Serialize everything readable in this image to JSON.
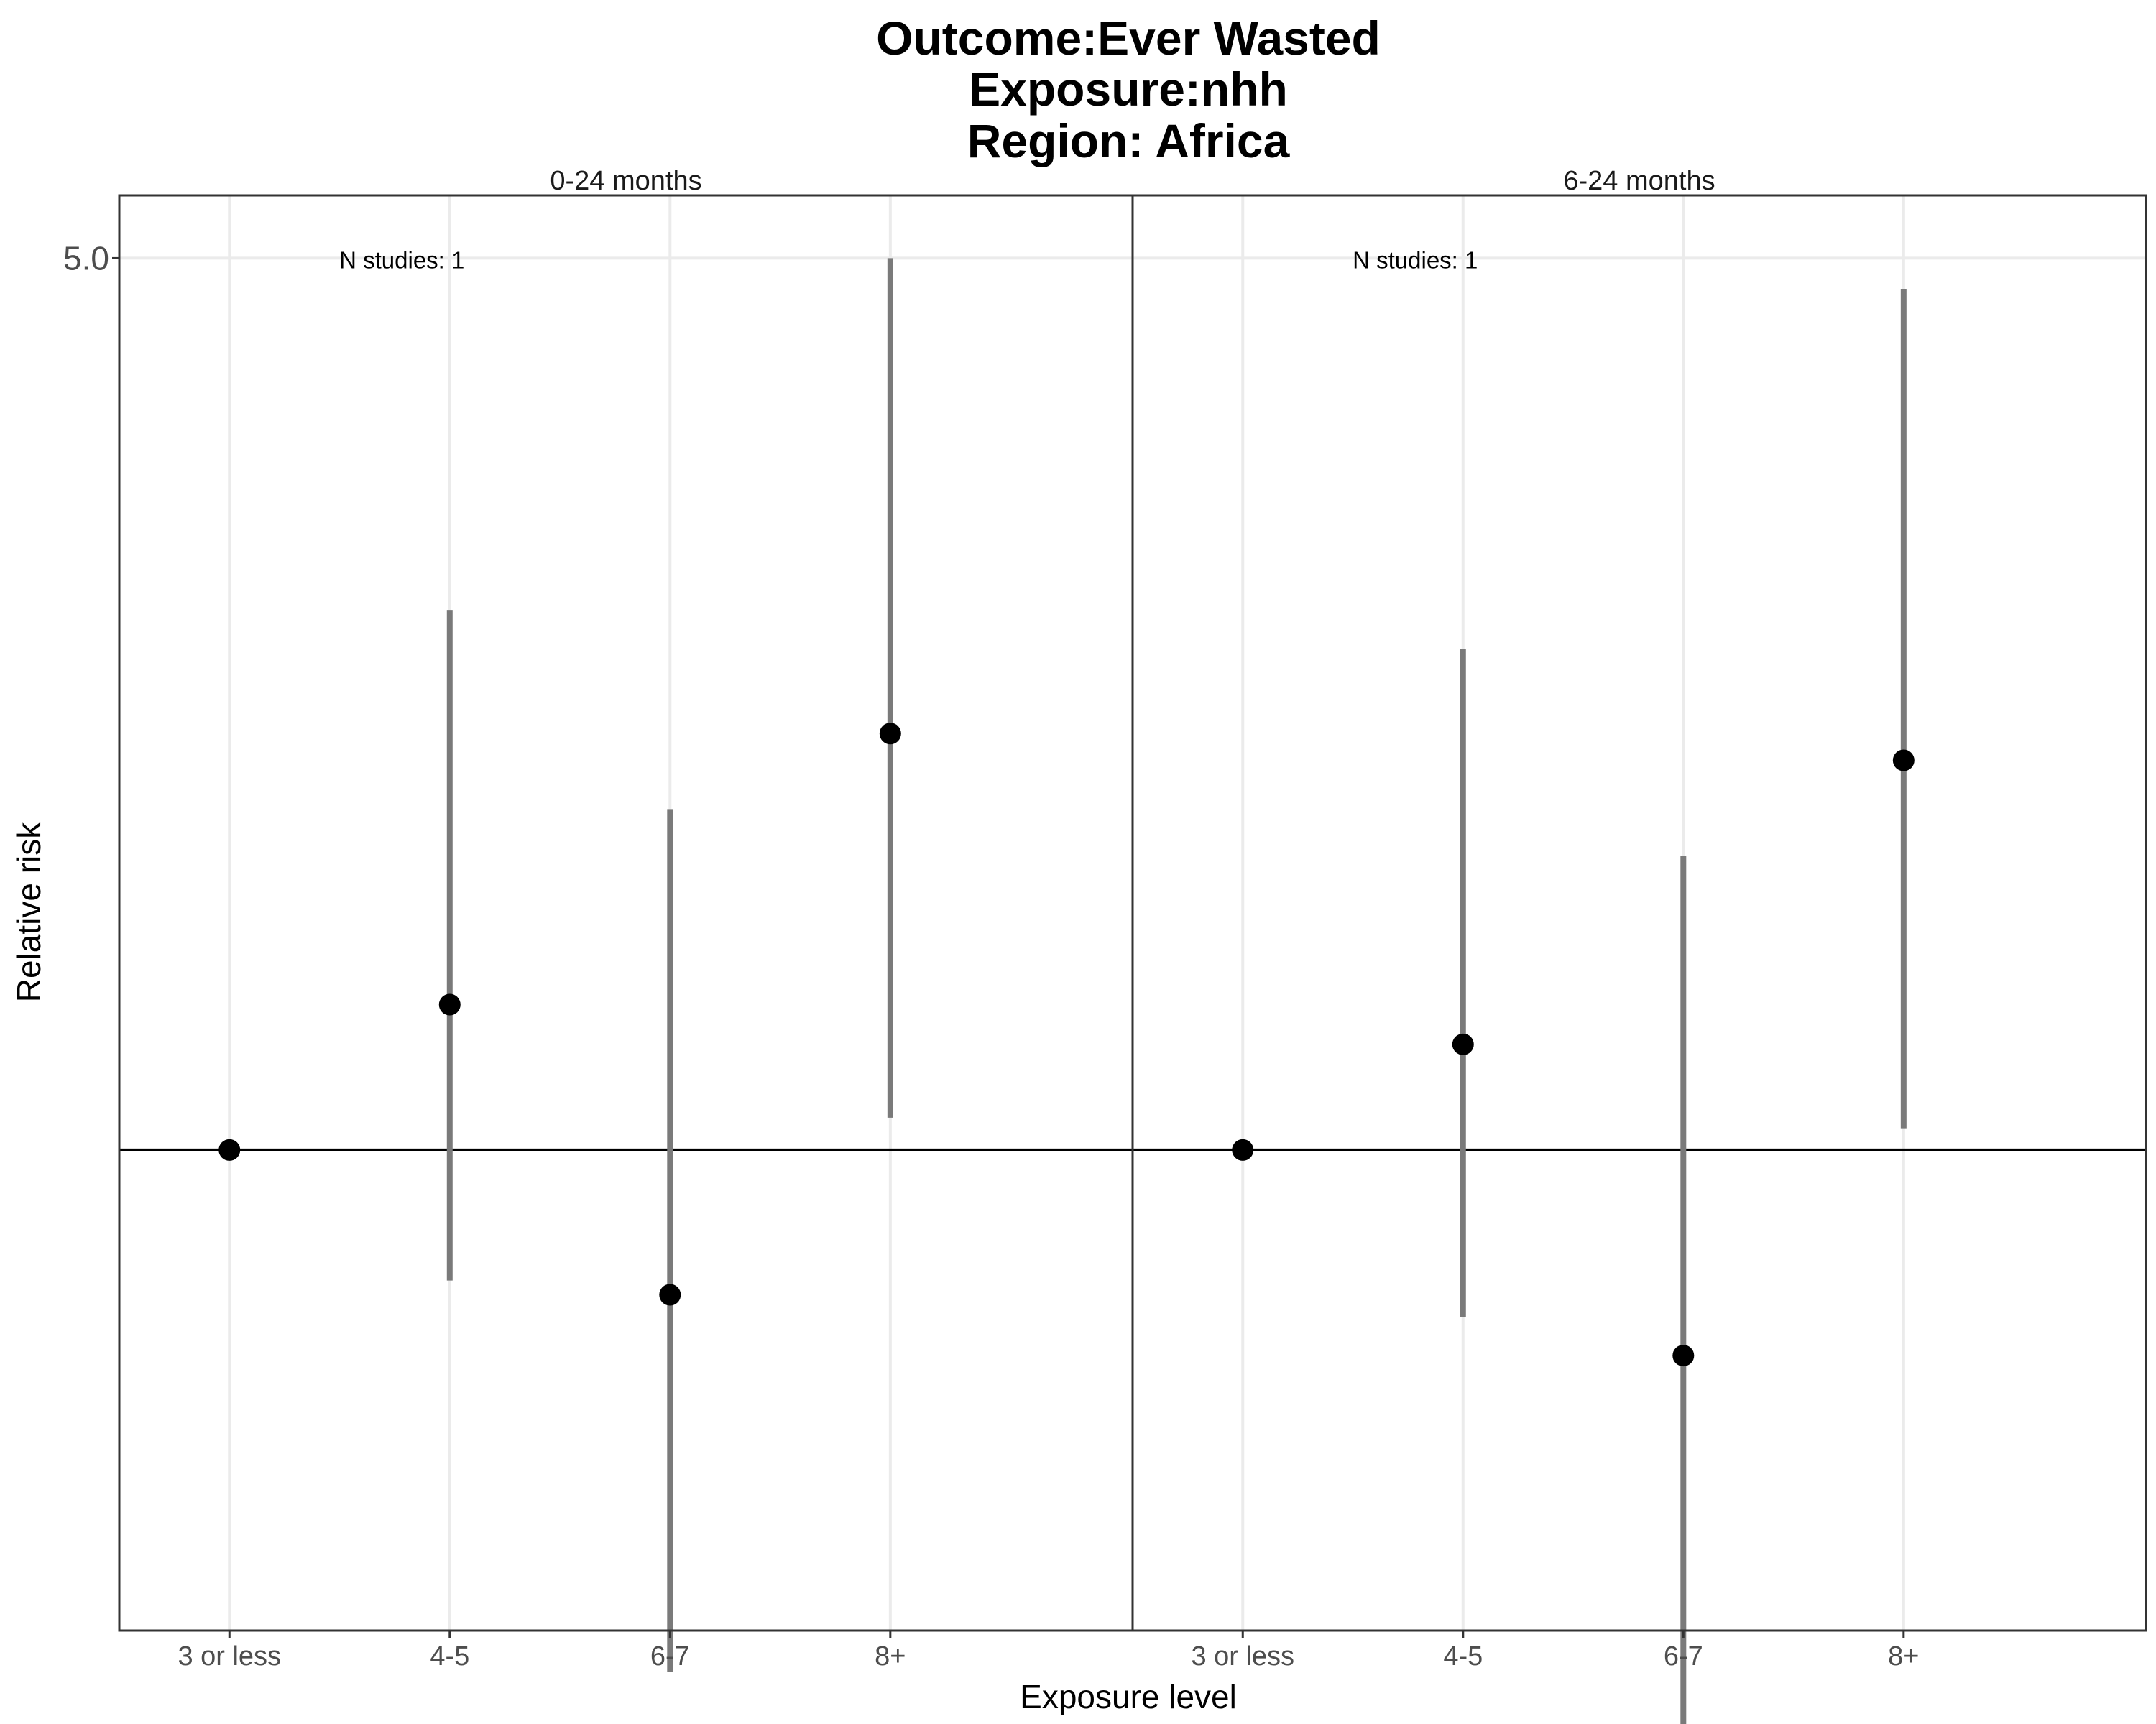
{
  "chart_data": {
    "type": "scatter",
    "title": [
      "Outcome:Ever Wasted",
      "Exposure:nhh",
      "Region: Africa"
    ],
    "xlabel": "Exposure level",
    "ylabel": "Relative risk",
    "y_scale": "log",
    "ylim": [
      0.42,
      5.6
    ],
    "yticks": [
      {
        "value": 5.0,
        "label": "5.0"
      }
    ],
    "reference_line": 1.0,
    "grid": true,
    "categories": [
      "3 or less",
      "4-5",
      "6-7",
      "8+"
    ],
    "panels": [
      {
        "strip": "0-24 months",
        "annotation": "N studies: 1",
        "points": [
          {
            "x": "3 or less",
            "y": 1.0,
            "lower": null,
            "upper": null
          },
          {
            "x": "4-5",
            "y": 1.3,
            "lower": 0.79,
            "upper": 2.65
          },
          {
            "x": "6-7",
            "y": 0.77,
            "lower": 0.39,
            "upper": 1.85
          },
          {
            "x": "8+",
            "y": 2.12,
            "lower": 1.06,
            "upper": 5.0
          }
        ]
      },
      {
        "strip": "6-24 months",
        "annotation": "N studies: 1",
        "points": [
          {
            "x": "3 or less",
            "y": 1.0,
            "lower": null,
            "upper": null
          },
          {
            "x": "4-5",
            "y": 1.21,
            "lower": 0.74,
            "upper": 2.47
          },
          {
            "x": "6-7",
            "y": 0.69,
            "lower": 0.34,
            "upper": 1.7
          },
          {
            "x": "8+",
            "y": 2.02,
            "lower": 1.04,
            "upper": 4.73
          }
        ]
      }
    ]
  },
  "colors": {
    "point": "#000000",
    "errorbar": "#7a7a7a",
    "grid": "#ebebeb",
    "frame": "#333333",
    "refline": "#000000"
  }
}
